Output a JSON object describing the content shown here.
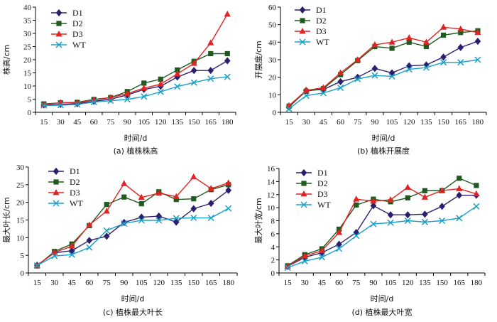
{
  "chart_data": [
    {
      "id": "a",
      "type": "line",
      "caption": "(a) 植株株高",
      "xlabel": "时间/d",
      "ylabel": "株高/cm",
      "x": [
        15,
        30,
        45,
        60,
        75,
        90,
        105,
        120,
        135,
        150,
        165,
        180
      ],
      "ylim": [
        0,
        40
      ],
      "yticks": [
        0,
        5,
        10,
        15,
        20,
        25,
        30,
        35,
        40
      ],
      "legend_position": "top-left",
      "series": [
        {
          "name": "D1",
          "color": "#2e1f6e",
          "marker": "diamond",
          "values": [
            2.8,
            3.0,
            3.3,
            4.2,
            5.0,
            6.6,
            8.7,
            9.9,
            13.4,
            15.9,
            15.9,
            19.6
          ]
        },
        {
          "name": "D2",
          "color": "#1f5a1f",
          "marker": "square",
          "values": [
            3.2,
            3.6,
            3.8,
            4.9,
            5.6,
            7.9,
            11.1,
            12.6,
            16.1,
            19.4,
            22.3,
            22.3
          ]
        },
        {
          "name": "D3",
          "color": "#e02424",
          "marker": "triangle",
          "values": [
            2.9,
            3.7,
            3.6,
            4.7,
            5.6,
            7.1,
            9.2,
            10.7,
            14.6,
            18.6,
            26.4,
            37.3
          ]
        },
        {
          "name": "WT",
          "color": "#1aa0c8",
          "marker": "x",
          "values": [
            2.6,
            2.7,
            3.0,
            3.9,
            4.4,
            4.9,
            6.0,
            7.8,
            9.8,
            11.3,
            12.8,
            13.5
          ]
        }
      ]
    },
    {
      "id": "b",
      "type": "line",
      "caption": "(b) 植株开展度",
      "xlabel": "时间/d",
      "ylabel": "开展度/cm",
      "x": [
        15,
        30,
        45,
        60,
        75,
        90,
        105,
        120,
        135,
        150,
        165,
        180
      ],
      "ylim": [
        0,
        60
      ],
      "yticks": [
        0,
        10,
        20,
        30,
        40,
        50,
        60
      ],
      "legend_position": "top-left",
      "series": [
        {
          "name": "D1",
          "color": "#2e1f6e",
          "marker": "diamond",
          "values": [
            3.0,
            12.5,
            13.0,
            17.5,
            20.0,
            25.0,
            22.5,
            26.5,
            27.0,
            31.5,
            37.0,
            40.5
          ]
        },
        {
          "name": "D2",
          "color": "#1f5a1f",
          "marker": "square",
          "values": [
            3.5,
            12.0,
            13.5,
            21.5,
            29.5,
            37.5,
            36.5,
            40.0,
            37.5,
            44.0,
            45.5,
            46.5
          ]
        },
        {
          "name": "D3",
          "color": "#e02424",
          "marker": "triangle",
          "values": [
            3.8,
            12.5,
            14.0,
            22.5,
            30.0,
            38.5,
            40.0,
            42.5,
            40.0,
            48.5,
            47.5,
            45.5
          ]
        },
        {
          "name": "WT",
          "color": "#1aa0c8",
          "marker": "x",
          "values": [
            2.0,
            9.5,
            11.0,
            14.0,
            19.0,
            21.0,
            20.5,
            24.5,
            25.5,
            28.5,
            28.5,
            30.0
          ]
        }
      ]
    },
    {
      "id": "c",
      "type": "line",
      "caption": "(c) 植株最大叶长",
      "xlabel": "时间/d",
      "ylabel": "最大叶长/cm",
      "x": [
        15,
        30,
        45,
        60,
        75,
        90,
        105,
        120,
        135,
        150,
        165,
        180
      ],
      "ylim": [
        0,
        30
      ],
      "yticks": [
        0,
        5,
        10,
        15,
        20,
        25,
        30
      ],
      "legend_position": "top-left",
      "series": [
        {
          "name": "D1",
          "color": "#2e1f6e",
          "marker": "diamond",
          "values": [
            2.2,
            5.7,
            6.3,
            9.2,
            10.4,
            14.3,
            15.8,
            16.1,
            14.4,
            18.2,
            19.7,
            23.4
          ]
        },
        {
          "name": "D2",
          "color": "#1f5a1f",
          "marker": "square",
          "values": [
            2.0,
            6.1,
            8.2,
            13.4,
            19.4,
            21.5,
            19.6,
            23.0,
            20.8,
            21.0,
            23.6,
            25.0
          ]
        },
        {
          "name": "D3",
          "color": "#e02424",
          "marker": "triangle",
          "values": [
            2.1,
            5.8,
            7.6,
            13.6,
            17.5,
            25.3,
            21.4,
            22.6,
            21.6,
            27.2,
            23.9,
            25.5
          ]
        },
        {
          "name": "WT",
          "color": "#1aa0c8",
          "marker": "x",
          "values": [
            2.1,
            4.8,
            5.2,
            7.2,
            12.0,
            14.0,
            14.9,
            14.9,
            15.5,
            15.6,
            15.6,
            18.3
          ]
        }
      ]
    },
    {
      "id": "d",
      "type": "line",
      "caption": "(d) 植株最大叶宽",
      "xlabel": "时间/d",
      "ylabel": "最大叶宽/cm",
      "x": [
        15,
        30,
        45,
        60,
        75,
        90,
        105,
        120,
        135,
        150,
        165,
        180
      ],
      "ylim": [
        0,
        16
      ],
      "yticks": [
        0,
        2,
        4,
        6,
        8,
        10,
        12,
        14,
        16
      ],
      "legend_position": "top-left",
      "series": [
        {
          "name": "D1",
          "color": "#2e1f6e",
          "marker": "diamond",
          "values": [
            1.0,
            2.4,
            3.1,
            4.4,
            6.2,
            10.3,
            8.9,
            8.9,
            9.0,
            10.2,
            11.9,
            11.9
          ]
        },
        {
          "name": "D2",
          "color": "#1f5a1f",
          "marker": "square",
          "values": [
            1.1,
            2.8,
            3.7,
            6.7,
            10.4,
            11.3,
            10.9,
            11.5,
            12.6,
            12.6,
            14.5,
            13.4
          ]
        },
        {
          "name": "D3",
          "color": "#e02424",
          "marker": "triangle",
          "values": [
            1.0,
            2.6,
            3.4,
            6.2,
            11.3,
            11.0,
            11.2,
            13.1,
            11.6,
            12.6,
            12.9,
            12.1
          ]
        },
        {
          "name": "WT",
          "color": "#1aa0c8",
          "marker": "x",
          "values": [
            0.8,
            1.8,
            2.4,
            3.7,
            5.7,
            7.5,
            7.7,
            8.0,
            7.8,
            8.0,
            8.4,
            10.2
          ]
        }
      ]
    }
  ]
}
